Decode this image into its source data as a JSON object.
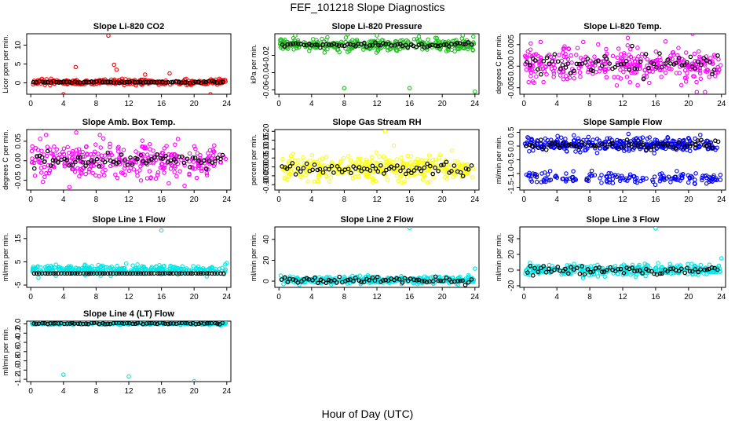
{
  "figure": {
    "title": "FEF_101218  Slope Diagnostics",
    "xlabel": "Hour of Day (UTC)"
  },
  "colors": {
    "red": "#ff0000",
    "green": "#22bb22",
    "magenta": "#ff00ff",
    "yellow": "#ffff00",
    "blue": "#0000ff",
    "cyan": "#00e5e5",
    "black": "#000000"
  },
  "chart_data": [
    {
      "type": "scatter",
      "title": "Slope Li-820 CO2",
      "ylabel": "Licor ppm per min.",
      "xticks": [
        0,
        4,
        8,
        12,
        16,
        20,
        24
      ],
      "xlim": [
        -0.5,
        24.5
      ],
      "yticks": [
        0,
        5,
        10
      ],
      "ytick_labels": [
        "0",
        "5",
        "10"
      ],
      "ylim": [
        -3,
        13
      ],
      "color": "red",
      "center": 0.2,
      "spread": 0.6,
      "black_spread": 0.2,
      "outliers": [
        [
          9.5,
          12.5
        ],
        [
          10.2,
          4.8
        ],
        [
          5.5,
          4.2
        ],
        [
          10.5,
          3.5
        ],
        [
          17,
          2.5
        ],
        [
          14,
          2.2
        ],
        [
          4,
          -3
        ],
        [
          22,
          -3
        ]
      ]
    },
    {
      "type": "scatter",
      "title": "Slope Li-820 Pressure",
      "ylabel": "kPa per min.",
      "xticks": [
        0,
        4,
        8,
        12,
        16,
        20,
        24
      ],
      "xlim": [
        -0.5,
        24.5
      ],
      "yticks": [
        -0.06,
        -0.04,
        -0.02
      ],
      "ytick_labels": [
        "-0.06",
        "-0.04",
        "-0.02"
      ],
      "ylim": [
        -0.065,
        0.005
      ],
      "color": "green",
      "center": -0.008,
      "spread": 0.006,
      "black_spread": 0.002,
      "outliers": [
        [
          8,
          -0.058
        ],
        [
          16,
          -0.058
        ],
        [
          24,
          -0.062
        ],
        [
          2,
          0.003
        ],
        [
          12,
          0.003
        ],
        [
          22.5,
          0.003
        ]
      ]
    },
    {
      "type": "scatter",
      "title": "Slope Li-820 Temp.",
      "ylabel": "degrees C per min.",
      "xticks": [
        0,
        4,
        8,
        12,
        16,
        20,
        24
      ],
      "xlim": [
        -0.5,
        24.5
      ],
      "yticks": [
        -0.005,
        0,
        0.005
      ],
      "ytick_labels": [
        "-0.005",
        "0.000",
        "0.005"
      ],
      "ylim": [
        -0.0065,
        0.0075
      ],
      "color": "magenta",
      "center": 0.0005,
      "spread": 0.0035,
      "black_spread": 0.002,
      "outliers": [
        [
          20.5,
          0.0075
        ],
        [
          21,
          -0.006
        ],
        [
          22,
          -0.006
        ]
      ]
    },
    {
      "type": "scatter",
      "title": "Slope Amb. Box Temp.",
      "ylabel": "degrees C per min.",
      "xticks": [
        0,
        4,
        8,
        12,
        16,
        20,
        24
      ],
      "xlim": [
        -0.5,
        24.5
      ],
      "yticks": [
        -0.05,
        0,
        0.05
      ],
      "ytick_labels": [
        "-0.05",
        "0.00",
        "0.05"
      ],
      "ylim": [
        -0.075,
        0.08
      ],
      "color": "magenta",
      "center": 0.0,
      "spread": 0.045,
      "black_spread": 0.02,
      "outliers": []
    },
    {
      "type": "scatter",
      "title": "Slope Gas Stream RH",
      "ylabel": "percent per min.",
      "xticks": [
        0,
        4,
        8,
        12,
        16,
        20,
        24
      ],
      "xlim": [
        -0.5,
        24.5
      ],
      "yticks": [
        -0.1,
        -0.05,
        0,
        0.05,
        0.1,
        0.15,
        0.2
      ],
      "ytick_labels": [
        "-0.10",
        "-0.05",
        "0.00",
        "0.05",
        "0.10",
        "0.15",
        "0.20"
      ],
      "ylim": [
        -0.13,
        0.21
      ],
      "color": "yellow",
      "center": -0.01,
      "spread": 0.06,
      "black_spread": 0.03,
      "outliers": [
        [
          13,
          0.2
        ]
      ]
    },
    {
      "type": "scatter",
      "title": "Slope Sample Flow",
      "ylabel": "ml/min per min.",
      "xticks": [
        0,
        4,
        8,
        12,
        16,
        20,
        24
      ],
      "xlim": [
        -0.5,
        24.5
      ],
      "yticks": [
        -1.5,
        -1,
        -0.5,
        0,
        0.5
      ],
      "ytick_labels": [
        "-1.5",
        "-1.0",
        "-0.5",
        "0.0",
        "0.5"
      ],
      "ylim": [
        -1.6,
        0.6
      ],
      "color": "blue",
      "center": 0.05,
      "spread": 0.22,
      "black_spread": 0.15,
      "second_band": {
        "center": -1.15,
        "spread": 0.18
      },
      "outliers": []
    },
    {
      "type": "scatter",
      "title": "Slope Line 1 Flow",
      "ylabel": "ml/min per min.",
      "xticks": [
        0,
        4,
        8,
        12,
        16,
        20,
        24
      ],
      "xlim": [
        -0.5,
        24.5
      ],
      "yticks": [
        -5,
        5,
        15
      ],
      "ytick_labels": [
        "-5",
        "5",
        "15"
      ],
      "ylim": [
        -6,
        20
      ],
      "color": "cyan",
      "center": 1.5,
      "spread": 1.8,
      "black_spread": 0.0,
      "black_constant": 0,
      "outliers": [
        [
          16,
          18.5
        ],
        [
          24,
          4.5
        ]
      ]
    },
    {
      "type": "scatter",
      "title": "Slope Line 2 Flow",
      "ylabel": "ml/min per min.",
      "xticks": [
        0,
        4,
        8,
        12,
        16,
        20,
        24
      ],
      "xlim": [
        -0.5,
        24.5
      ],
      "yticks": [
        0,
        20,
        40
      ],
      "ytick_labels": [
        "0",
        "20",
        "40"
      ],
      "ylim": [
        -6,
        52
      ],
      "color": "cyan",
      "center": 1,
      "spread": 3,
      "black_spread": 2.5,
      "outliers": [
        [
          16,
          51
        ],
        [
          24,
          12
        ]
      ]
    },
    {
      "type": "scatter",
      "title": "Slope Line 3 Flow",
      "ylabel": "ml/min per min.",
      "xticks": [
        0,
        4,
        8,
        12,
        16,
        20,
        24
      ],
      "xlim": [
        -0.5,
        24.5
      ],
      "yticks": [
        -20,
        0,
        20,
        40
      ],
      "ytick_labels": [
        "-20",
        "0",
        "20",
        "40"
      ],
      "ylim": [
        -22,
        55
      ],
      "color": "cyan",
      "center": 0,
      "spread": 6,
      "black_spread": 5,
      "outliers": [
        [
          16,
          53
        ],
        [
          24,
          15
        ]
      ]
    },
    {
      "type": "scatter",
      "title": "Slope Line 4 (LT) Flow",
      "ylabel": "ml/min per min.",
      "xticks": [
        0,
        4,
        8,
        12,
        16,
        20,
        24
      ],
      "xlim": [
        -0.5,
        24.5
      ],
      "yticks": [
        -1.2,
        -1.0,
        -0.8,
        -0.6,
        -0.4,
        -0.2,
        0.0
      ],
      "ytick_labels": [
        "-1.2",
        "-1.0",
        "-0.8",
        "-0.6",
        "-0.4",
        "-0.2",
        "0.0"
      ],
      "ylim": [
        -1.25,
        0.06
      ],
      "color": "cyan",
      "center": 0.01,
      "spread": 0.025,
      "black_spread": 0.015,
      "outliers": [
        [
          4,
          -1.1
        ],
        [
          12,
          -1.14
        ],
        [
          20,
          -1.24
        ]
      ]
    }
  ]
}
